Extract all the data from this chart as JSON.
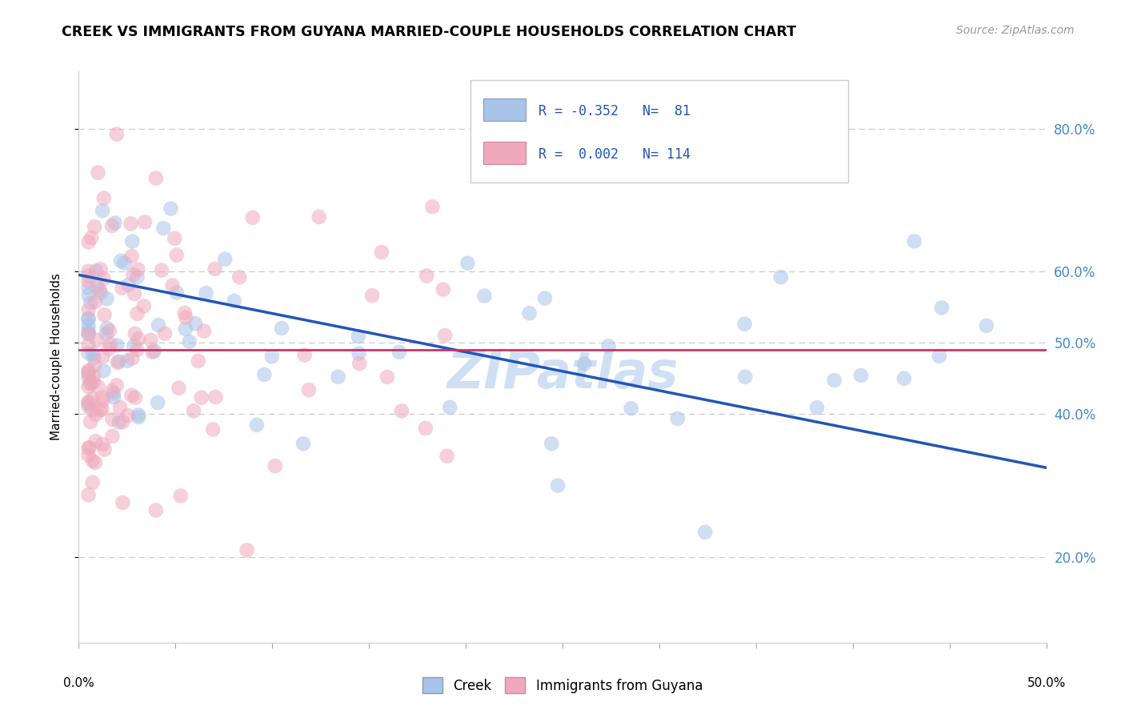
{
  "title": "CREEK VS IMMIGRANTS FROM GUYANA MARRIED-COUPLE HOUSEHOLDS CORRELATION CHART",
  "source_text": "Source: ZipAtlas.com",
  "ylabel": "Married-couple Households",
  "xmin": 0.0,
  "xmax": 0.5,
  "ymin": 0.08,
  "ymax": 0.88,
  "y_tick_vals": [
    0.2,
    0.4,
    0.5,
    0.6,
    0.8
  ],
  "y_tick_labels": [
    "20.0%",
    "40.0%",
    "50.0%",
    "60.0%",
    "80.0%"
  ],
  "blue_fill": "#a8c4e8",
  "pink_fill": "#f0a8bc",
  "blue_line_color": "#2255bb",
  "pink_line_color": "#cc3366",
  "legend_text_color": "#2255bb",
  "grid_color": "#cccccc",
  "tick_label_color": "#4488cc",
  "blue_trend_x0": 0.0,
  "blue_trend_y0": 0.595,
  "blue_trend_x1": 0.5,
  "blue_trend_y1": 0.325,
  "pink_trend_y": 0.49,
  "watermark_text": "ZIPatlas",
  "watermark_color": "#b0ccee",
  "dot_size": 180,
  "dot_alpha": 0.55
}
